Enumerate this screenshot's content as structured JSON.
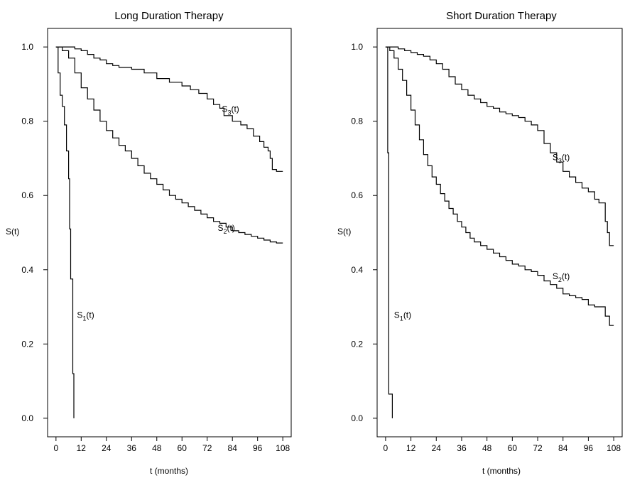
{
  "chart_data": [
    {
      "type": "line",
      "title": "Long Duration Therapy",
      "xlabel": "t (months)",
      "ylabel": "S(t)",
      "xlim": [
        -4,
        112
      ],
      "ylim": [
        -0.05,
        1.05
      ],
      "xticks": [
        0,
        12,
        24,
        36,
        48,
        60,
        72,
        84,
        96,
        108
      ],
      "yticks": [
        "0.0",
        "0.2",
        "0.4",
        "0.6",
        "0.8",
        "1.0"
      ],
      "grid": false,
      "step": true,
      "color": "#000000",
      "series": [
        {
          "name": "S1(t)",
          "label": {
            "base": "S",
            "sub": "1",
            "suffix": "(t)",
            "x": 10,
            "y": 0.27
          },
          "points": [
            [
              0,
              1.0
            ],
            [
              1,
              0.93
            ],
            [
              2,
              0.87
            ],
            [
              3,
              0.84
            ],
            [
              4,
              0.79
            ],
            [
              5,
              0.72
            ],
            [
              6,
              0.645
            ],
            [
              6.5,
              0.51
            ],
            [
              7,
              0.375
            ],
            [
              8,
              0.12
            ],
            [
              8.5,
              0.0
            ]
          ]
        },
        {
          "name": "S2(t)",
          "label": {
            "base": "S",
            "sub": "2",
            "suffix": "(t)",
            "x": 77,
            "y": 0.505
          },
          "points": [
            [
              0,
              1.0
            ],
            [
              3,
              0.99
            ],
            [
              6,
              0.97
            ],
            [
              9,
              0.93
            ],
            [
              12,
              0.89
            ],
            [
              15,
              0.86
            ],
            [
              18,
              0.83
            ],
            [
              21,
              0.8
            ],
            [
              24,
              0.775
            ],
            [
              27,
              0.755
            ],
            [
              30,
              0.735
            ],
            [
              33,
              0.72
            ],
            [
              36,
              0.7
            ],
            [
              39,
              0.68
            ],
            [
              42,
              0.66
            ],
            [
              45,
              0.645
            ],
            [
              48,
              0.63
            ],
            [
              51,
              0.615
            ],
            [
              54,
              0.6
            ],
            [
              57,
              0.59
            ],
            [
              60,
              0.58
            ],
            [
              63,
              0.57
            ],
            [
              66,
              0.56
            ],
            [
              69,
              0.55
            ],
            [
              72,
              0.54
            ],
            [
              75,
              0.53
            ],
            [
              78,
              0.525
            ],
            [
              81,
              0.515
            ],
            [
              84,
              0.505
            ],
            [
              87,
              0.5
            ],
            [
              90,
              0.495
            ],
            [
              93,
              0.49
            ],
            [
              96,
              0.485
            ],
            [
              99,
              0.48
            ],
            [
              102,
              0.475
            ],
            [
              105,
              0.472
            ],
            [
              108,
              0.472
            ]
          ]
        },
        {
          "name": "S3(t)",
          "label": {
            "base": "S",
            "sub": "3",
            "suffix": "(t)",
            "x": 79,
            "y": 0.825
          },
          "points": [
            [
              0,
              1.0
            ],
            [
              6,
              1.0
            ],
            [
              9,
              0.995
            ],
            [
              12,
              0.99
            ],
            [
              15,
              0.98
            ],
            [
              18,
              0.97
            ],
            [
              21,
              0.965
            ],
            [
              24,
              0.955
            ],
            [
              27,
              0.95
            ],
            [
              30,
              0.945
            ],
            [
              36,
              0.94
            ],
            [
              42,
              0.93
            ],
            [
              48,
              0.915
            ],
            [
              54,
              0.905
            ],
            [
              60,
              0.895
            ],
            [
              64,
              0.885
            ],
            [
              68,
              0.875
            ],
            [
              72,
              0.86
            ],
            [
              75,
              0.845
            ],
            [
              78,
              0.835
            ],
            [
              80,
              0.815
            ],
            [
              84,
              0.8
            ],
            [
              88,
              0.79
            ],
            [
              91,
              0.78
            ],
            [
              94,
              0.76
            ],
            [
              97,
              0.745
            ],
            [
              99,
              0.73
            ],
            [
              101,
              0.72
            ],
            [
              102,
              0.7
            ],
            [
              103,
              0.67
            ],
            [
              105,
              0.665
            ],
            [
              108,
              0.665
            ]
          ]
        }
      ]
    },
    {
      "type": "line",
      "title": "Short Duration Therapy",
      "xlabel": "t (months)",
      "ylabel": "S(t)",
      "xlim": [
        -4,
        112
      ],
      "ylim": [
        -0.05,
        1.05
      ],
      "xticks": [
        0,
        12,
        24,
        36,
        48,
        60,
        72,
        84,
        96,
        108
      ],
      "yticks": [
        "0.0",
        "0.2",
        "0.4",
        "0.6",
        "0.8",
        "1.0"
      ],
      "grid": false,
      "step": true,
      "color": "#000000",
      "series": [
        {
          "name": "S1(t)",
          "label": {
            "base": "S",
            "sub": "1",
            "suffix": "(t)",
            "x": 4,
            "y": 0.27
          },
          "points": [
            [
              0,
              1.0
            ],
            [
              1,
              0.715
            ],
            [
              1.5,
              0.065
            ],
            [
              3,
              0.065
            ],
            [
              3.2,
              0.0
            ]
          ]
        },
        {
          "name": "S2(t)",
          "label": {
            "base": "S",
            "sub": "2",
            "suffix": "(t)",
            "x": 79,
            "y": 0.375
          },
          "points": [
            [
              0,
              1.0
            ],
            [
              2,
              0.99
            ],
            [
              4,
              0.97
            ],
            [
              6,
              0.94
            ],
            [
              8,
              0.91
            ],
            [
              10,
              0.87
            ],
            [
              12,
              0.83
            ],
            [
              14,
              0.79
            ],
            [
              16,
              0.75
            ],
            [
              18,
              0.71
            ],
            [
              20,
              0.68
            ],
            [
              22,
              0.65
            ],
            [
              24,
              0.63
            ],
            [
              26,
              0.605
            ],
            [
              28,
              0.585
            ],
            [
              30,
              0.565
            ],
            [
              32,
              0.55
            ],
            [
              34,
              0.53
            ],
            [
              36,
              0.515
            ],
            [
              38,
              0.5
            ],
            [
              40,
              0.485
            ],
            [
              42,
              0.475
            ],
            [
              45,
              0.465
            ],
            [
              48,
              0.455
            ],
            [
              51,
              0.445
            ],
            [
              54,
              0.435
            ],
            [
              57,
              0.425
            ],
            [
              60,
              0.415
            ],
            [
              63,
              0.41
            ],
            [
              66,
              0.4
            ],
            [
              69,
              0.395
            ],
            [
              72,
              0.385
            ],
            [
              75,
              0.37
            ],
            [
              78,
              0.36
            ],
            [
              81,
              0.35
            ],
            [
              84,
              0.335
            ],
            [
              87,
              0.33
            ],
            [
              90,
              0.325
            ],
            [
              93,
              0.32
            ],
            [
              96,
              0.305
            ],
            [
              99,
              0.3
            ],
            [
              102,
              0.3
            ],
            [
              104,
              0.275
            ],
            [
              106,
              0.25
            ],
            [
              108,
              0.25
            ]
          ]
        },
        {
          "name": "S3(t)",
          "label": {
            "base": "S",
            "sub": "3",
            "suffix": "(t)",
            "x": 79,
            "y": 0.695
          },
          "points": [
            [
              0,
              1.0
            ],
            [
              3,
              1.0
            ],
            [
              6,
              0.995
            ],
            [
              9,
              0.99
            ],
            [
              12,
              0.985
            ],
            [
              15,
              0.98
            ],
            [
              18,
              0.975
            ],
            [
              21,
              0.965
            ],
            [
              24,
              0.955
            ],
            [
              27,
              0.94
            ],
            [
              30,
              0.92
            ],
            [
              33,
              0.9
            ],
            [
              36,
              0.885
            ],
            [
              39,
              0.87
            ],
            [
              42,
              0.86
            ],
            [
              45,
              0.85
            ],
            [
              48,
              0.84
            ],
            [
              51,
              0.835
            ],
            [
              54,
              0.825
            ],
            [
              57,
              0.82
            ],
            [
              60,
              0.815
            ],
            [
              63,
              0.81
            ],
            [
              66,
              0.8
            ],
            [
              69,
              0.79
            ],
            [
              72,
              0.775
            ],
            [
              75,
              0.74
            ],
            [
              78,
              0.715
            ],
            [
              81,
              0.69
            ],
            [
              84,
              0.665
            ],
            [
              87,
              0.65
            ],
            [
              90,
              0.635
            ],
            [
              93,
              0.62
            ],
            [
              96,
              0.61
            ],
            [
              99,
              0.59
            ],
            [
              101,
              0.58
            ],
            [
              103,
              0.58
            ],
            [
              104,
              0.53
            ],
            [
              105,
              0.5
            ],
            [
              106,
              0.465
            ],
            [
              108,
              0.465
            ]
          ]
        }
      ]
    }
  ]
}
